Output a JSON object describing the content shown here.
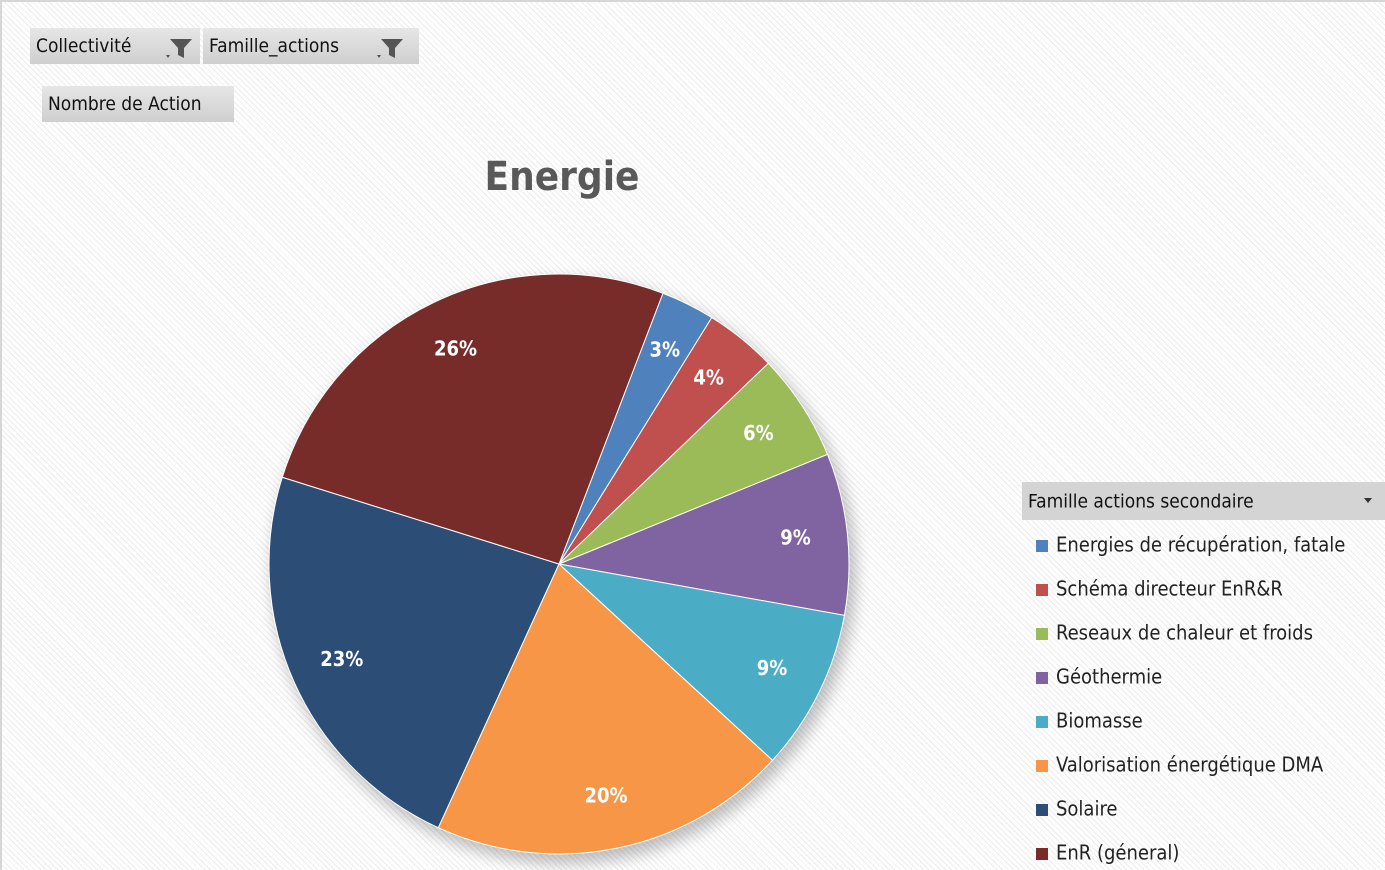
{
  "filters": [
    "Collectivité",
    "Famille_actions"
  ],
  "value_field": "Nombre de Action",
  "chart_data": {
    "type": "pie",
    "title": "Energie",
    "legend_title": "Famille actions secondaire",
    "categories": [
      "Energies de récupération, fatale",
      "Schéma directeur EnR&R",
      "Reseaux de chaleur et froids",
      "Géothermie",
      "Biomasse",
      "Valorisation énergétique DMA",
      "Solaire",
      "EnR (géneral)"
    ],
    "values": [
      3,
      4,
      6,
      9,
      9,
      20,
      23,
      26
    ],
    "value_labels": [
      "3%",
      "4%",
      "6%",
      "9%",
      "9%",
      "20%",
      "23%",
      "26%"
    ],
    "colors": [
      "#4f81bd",
      "#c0504d",
      "#9bbb59",
      "#8064a2",
      "#4bacc6",
      "#f79646",
      "#2c4d75",
      "#772c2a"
    ],
    "legend": "right"
  }
}
